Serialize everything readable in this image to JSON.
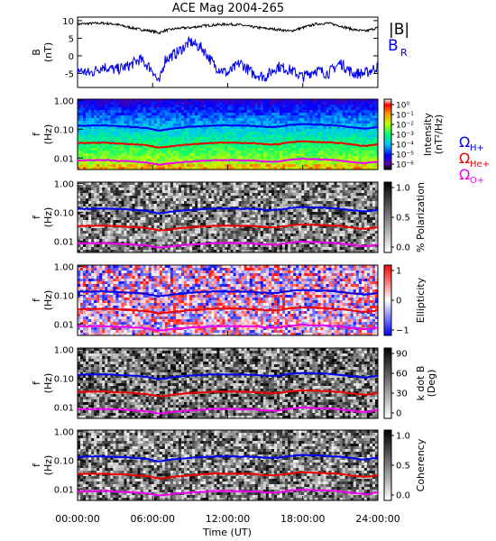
{
  "title": "ACE Mag 2004-265",
  "colors": {
    "B": "#000000",
    "BR": "#0000ee",
    "H": "#0000ee",
    "He": "#ee0000",
    "O": "#ee00ee"
  },
  "x_axis": {
    "label": "Time (UT)",
    "range_hours": [
      0,
      24
    ],
    "ticks": [
      "00:00:00",
      "06:00:00",
      "12:00:00",
      "18:00:00",
      "24:00:00"
    ]
  },
  "legend": {
    "B": "|B|",
    "BR": "B",
    "BR_sub": "R",
    "omega": "Ω",
    "H_sub": "H+",
    "He_sub": "He+",
    "O_sub": "O+"
  },
  "chart_data": [
    {
      "type": "line",
      "panel": "field",
      "ylabel": "B",
      "ylabel2": "(nT)",
      "ylim": [
        -9,
        11
      ],
      "yticks": [
        "10",
        "5",
        "0",
        "-5"
      ],
      "series": [
        {
          "name": "|B|",
          "x": [
            0,
            1,
            2,
            3,
            4,
            5,
            6,
            6.5,
            7,
            8,
            9,
            10,
            11,
            12,
            13,
            14,
            15,
            16,
            17,
            18,
            19,
            20,
            21,
            22,
            23,
            24
          ],
          "values": [
            9,
            9.2,
            9.3,
            9,
            8.2,
            7.5,
            7,
            6.5,
            7.2,
            7.8,
            8,
            8.5,
            8.8,
            9,
            8.8,
            8.2,
            7.8,
            7.5,
            7,
            8,
            9,
            9.3,
            8.5,
            7.5,
            7,
            8
          ]
        },
        {
          "name": "B_R",
          "x": [
            0,
            1,
            2,
            3,
            4,
            5,
            6,
            6.5,
            7,
            8,
            9,
            10,
            11,
            12,
            13,
            14,
            15,
            16,
            17,
            18,
            19,
            20,
            21,
            22,
            23,
            24
          ],
          "values": [
            -4,
            -5,
            -3,
            -4,
            -3,
            -1,
            -4,
            -8,
            -1,
            1,
            4,
            2,
            -3,
            -5,
            -2,
            -5,
            -6,
            -3,
            -4,
            -6,
            -4,
            -5,
            -2,
            -5,
            -5,
            -3
          ]
        }
      ]
    },
    {
      "type": "heatmap",
      "panel": "intensity",
      "ylabel": "f",
      "ylabel2": "(Hz)",
      "colorbar_label": "Intensity",
      "colorbar_label2": "(nT²/Hz)",
      "colorbar_ticks": [
        "10⁰",
        "10⁻¹",
        "10⁻²",
        "10⁻³",
        "10⁻⁴",
        "10⁻⁵",
        "10⁻⁶"
      ]
    },
    {
      "type": "heatmap",
      "panel": "polarization",
      "ylabel": "f",
      "ylabel2": "(Hz)",
      "colorbar_label": "% Polarization",
      "colorbar_label2": "",
      "colorbar_ticks": [
        "1.0",
        "0.5",
        "0.0"
      ]
    },
    {
      "type": "heatmap",
      "panel": "ellipticity",
      "ylabel": "f",
      "ylabel2": "(Hz)",
      "colorbar_label": "Ellipticity",
      "colorbar_label2": "",
      "colorbar_ticks": [
        "1",
        "0",
        "−1"
      ]
    },
    {
      "type": "heatmap",
      "panel": "kdotb",
      "ylabel": "f",
      "ylabel2": "(Hz)",
      "colorbar_label": "k dot B",
      "colorbar_label2": "(Deg)",
      "colorbar_ticks": [
        "90",
        "60",
        "30",
        "0"
      ]
    },
    {
      "type": "heatmap",
      "panel": "coherency",
      "ylabel": "f",
      "ylabel2": "(Hz)",
      "colorbar_label": "Coherency",
      "colorbar_label2": "",
      "colorbar_ticks": [
        "1.0",
        "0.5",
        "0.0"
      ]
    }
  ],
  "freq_axis": {
    "ylim": [
      0.004,
      1.1
    ],
    "ticks": [
      "1.00",
      "0.10",
      "0.01"
    ]
  },
  "gyrofrequencies": {
    "x": [
      0,
      2,
      4,
      5.5,
      6.5,
      7.5,
      9,
      11,
      12,
      14,
      15,
      16,
      17,
      18,
      19,
      20,
      21,
      22,
      23,
      24
    ],
    "H+": [
      0.13,
      0.135,
      0.125,
      0.11,
      0.09,
      0.105,
      0.12,
      0.135,
      0.135,
      0.13,
      0.12,
      0.12,
      0.14,
      0.15,
      0.145,
      0.14,
      0.13,
      0.115,
      0.105,
      0.12
    ],
    "He+": [
      0.033,
      0.034,
      0.031,
      0.028,
      0.023,
      0.026,
      0.03,
      0.034,
      0.034,
      0.033,
      0.03,
      0.03,
      0.035,
      0.038,
      0.036,
      0.035,
      0.033,
      0.029,
      0.026,
      0.03
    ],
    "O+": [
      0.0082,
      0.0085,
      0.0078,
      0.007,
      0.0058,
      0.0066,
      0.0075,
      0.0085,
      0.0085,
      0.0082,
      0.0075,
      0.0075,
      0.0088,
      0.0095,
      0.009,
      0.0088,
      0.0082,
      0.0072,
      0.0066,
      0.0075
    ]
  }
}
